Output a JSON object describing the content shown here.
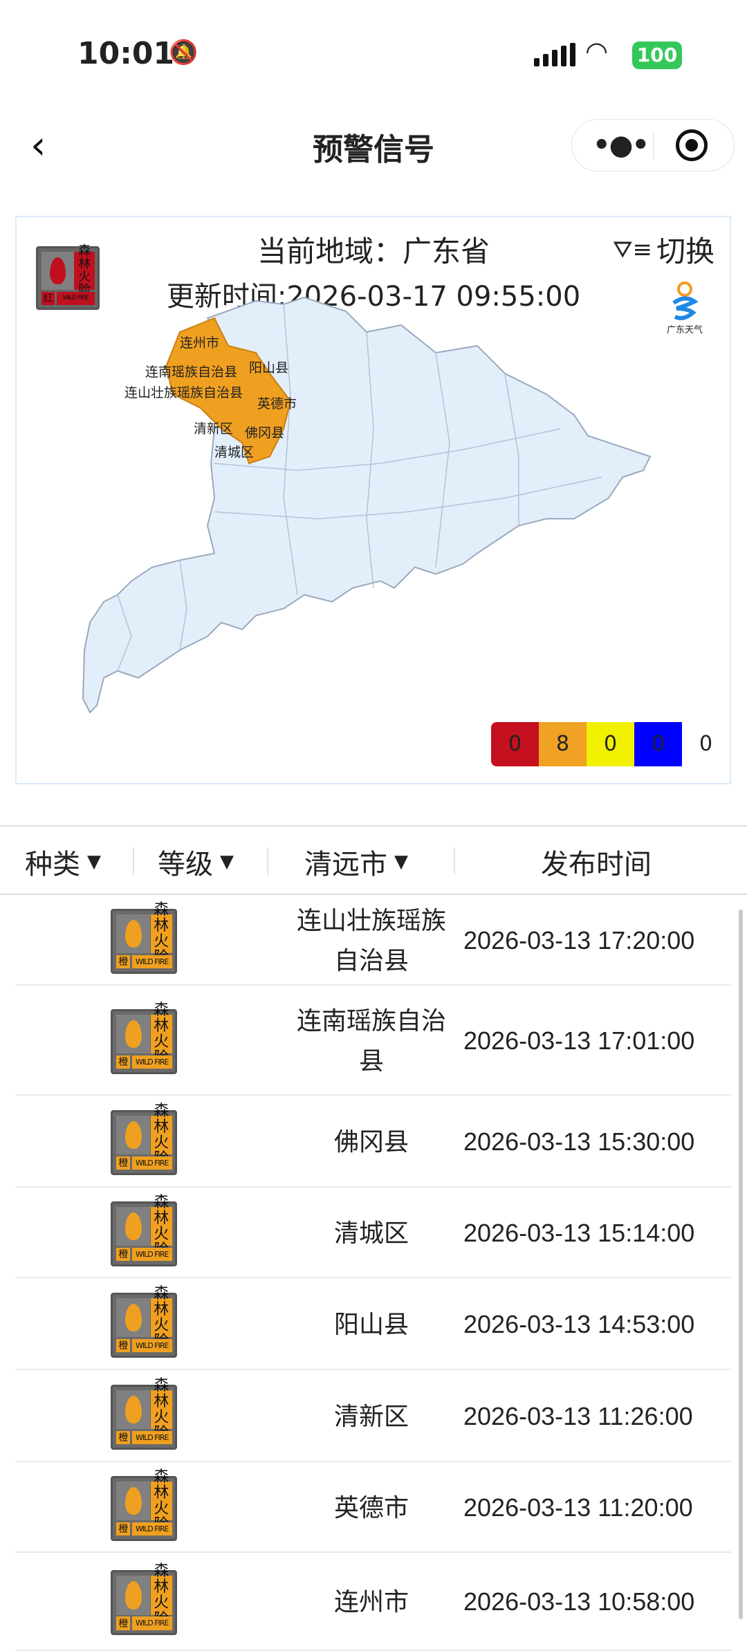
{
  "status_bar": {
    "time": "10:01",
    "battery": "100",
    "icons": [
      "bell-mute-icon",
      "signal-icon",
      "wifi-icon",
      "battery-icon"
    ]
  },
  "nav": {
    "title": "预警信号",
    "back_icon": "chevron-left-icon",
    "menu_icon": "more-dots-icon",
    "close_icon": "target-icon"
  },
  "card": {
    "region_label": "当前地域：广东省",
    "update_label": "更新时间:2026-03-17 09:55:00",
    "switch_label": "切换",
    "logo_text": "广东天气",
    "signal_badge": {
      "name_line1": "森林",
      "name_line2": "火险",
      "level": "红",
      "en": "WILD FIRE",
      "color": "#c0101f"
    },
    "map_labels": [
      "连州市",
      "连南瑶族自治县",
      "阳山县",
      "连山壮族瑶族自治县",
      "英德市",
      "清新区",
      "佛冈县",
      "清城区"
    ],
    "colors": {
      "map_fill": "#e3eefb",
      "map_stroke": "#9aa9bd",
      "warn_fill": "#f0a020"
    },
    "legend": [
      {
        "value": "0",
        "color": "#c4101f"
      },
      {
        "value": "8",
        "color": "#f0a225"
      },
      {
        "value": "0",
        "color": "#f0f000"
      },
      {
        "value": "0",
        "color": "#0000ff"
      },
      {
        "value": "0",
        "color": "#ffffff"
      }
    ]
  },
  "table": {
    "headers": {
      "type": "种类",
      "level": "等级",
      "city": "清远市",
      "time": "发布时间"
    },
    "rows": [
      {
        "area": "连山壮族瑶族自治县",
        "time": "2026-03-13 17:20:00"
      },
      {
        "area": "连南瑶族自治县",
        "time": "2026-03-13 17:01:00"
      },
      {
        "area": "佛冈县",
        "time": "2026-03-13 15:30:00"
      },
      {
        "area": "清城区",
        "time": "2026-03-13 15:14:00"
      },
      {
        "area": "阳山县",
        "time": "2026-03-13 14:53:00"
      },
      {
        "area": "清新区",
        "time": "2026-03-13 11:26:00"
      },
      {
        "area": "英德市",
        "time": "2026-03-13 11:20:00"
      },
      {
        "area": "连州市",
        "time": "2026-03-13 10:58:00"
      }
    ],
    "row_badge": {
      "name_line1": "森林",
      "name_line2": "火险",
      "level": "橙",
      "en": "WILD FIRE",
      "color": "#f0a020"
    }
  }
}
